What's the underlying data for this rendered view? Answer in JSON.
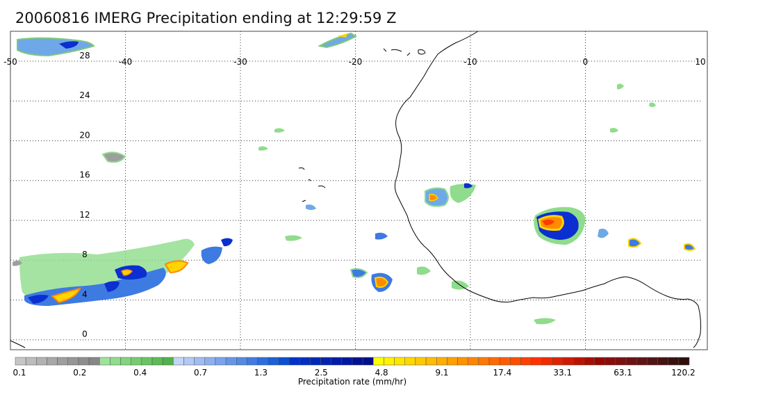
{
  "title": "20060816 IMERG Precipitation ending at 12:29:59 Z",
  "map": {
    "lon_range": [
      -50,
      10
    ],
    "lat_range": [
      -1,
      31
    ],
    "lon_ticks": [
      "-50",
      "-40",
      "-30",
      "-20",
      "-10",
      "0",
      "10"
    ],
    "lat_ticks": [
      "0",
      "4",
      "8",
      "12",
      "16",
      "20",
      "24",
      "28"
    ],
    "gridlines": "dotted",
    "features": [
      "West African coastline",
      "precipitation cells"
    ]
  },
  "colorbar": {
    "title": "Precipitation rate (mm/hr)",
    "labels": [
      "0.1",
      "0.2",
      "0.4",
      "0.7",
      "1.3",
      "2.5",
      "4.8",
      "9.1",
      "17.4",
      "33.1",
      "63.1",
      "120.2"
    ],
    "colors": [
      "#c6c6c6",
      "#bcbcbc",
      "#b2b2b2",
      "#a8a8a8",
      "#9e9e9e",
      "#969696",
      "#8e8e8e",
      "#868686",
      "#9de39b",
      "#8fdc8c",
      "#82d47e",
      "#75cc70",
      "#68c463",
      "#5cbb56",
      "#50b24a",
      "#c4d6f5",
      "#b2c9f3",
      "#a0bcf1",
      "#8eb0ee",
      "#7aa3eb",
      "#6796e8",
      "#5489e4",
      "#417be0",
      "#2e6edc",
      "#1b60d8",
      "#0a50d2",
      "#0033cc",
      "#002ec4",
      "#0028bb",
      "#0022b2",
      "#001ca9",
      "#0017a0",
      "#001197",
      "#000d8e",
      "#ffff00",
      "#fff200",
      "#ffe500",
      "#ffd700",
      "#ffc900",
      "#ffbc00",
      "#ffae00",
      "#ffa000",
      "#ff9200",
      "#ff8500",
      "#ff7800",
      "#ff6a00",
      "#ff5c00",
      "#ff4e00",
      "#ff4000",
      "#ff3200",
      "#f22a00",
      "#e02200",
      "#ce1a00",
      "#bc1200",
      "#aa0c00",
      "#980600",
      "#8a0c0c",
      "#7c1010",
      "#6e1212",
      "#601414",
      "#521414",
      "#461212",
      "#3a1010",
      "#300e0e"
    ]
  }
}
